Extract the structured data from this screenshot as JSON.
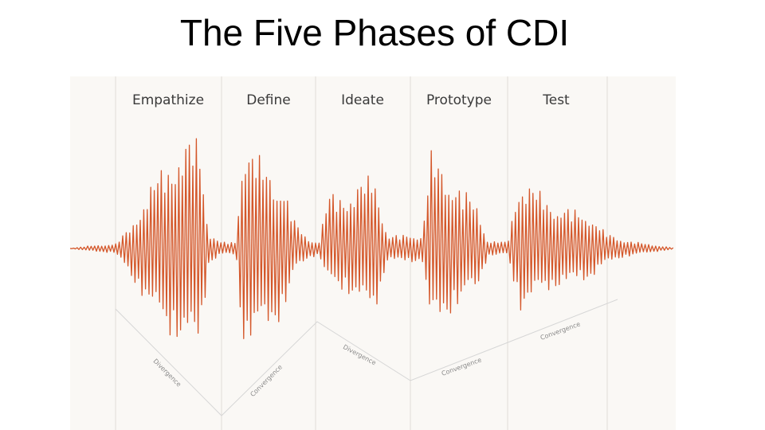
{
  "title": "The Five Phases of CDI",
  "phases": [
    {
      "label": "Empathize"
    },
    {
      "label": "Define"
    },
    {
      "label": "Ideate"
    },
    {
      "label": "Prototype"
    },
    {
      "label": "Test"
    }
  ],
  "modes": [
    {
      "label": "Divergence"
    },
    {
      "label": "Convergence"
    },
    {
      "label": "Divergence"
    },
    {
      "label": "Convergence"
    },
    {
      "label": "Convergence"
    }
  ],
  "colors": {
    "waveform": "#d4572a",
    "panel": "#faf8f5",
    "divider": "#e0dcd6",
    "guide": "#d6d6d6"
  }
}
